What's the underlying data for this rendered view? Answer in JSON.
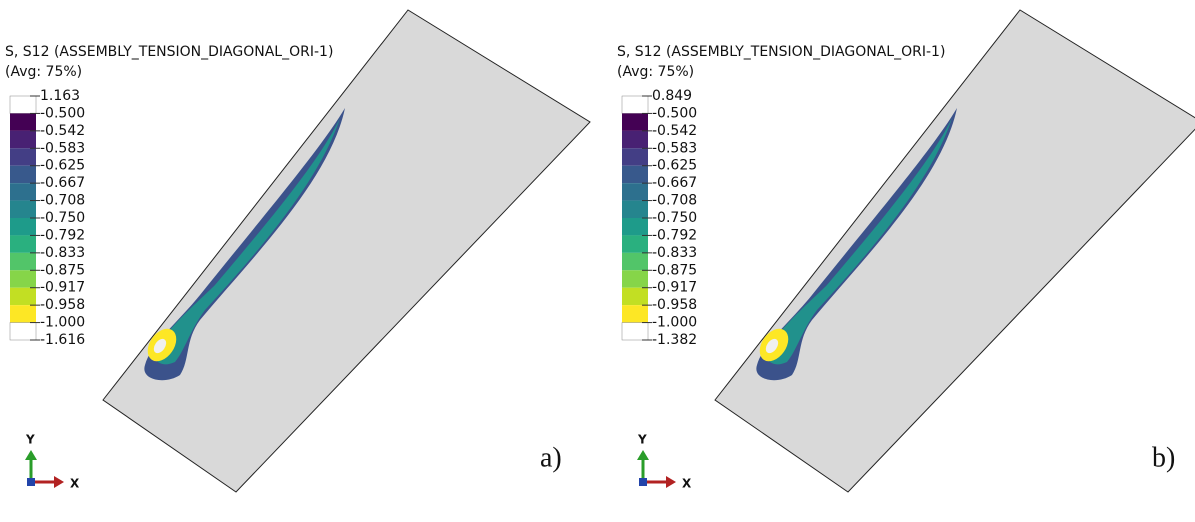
{
  "panels": [
    {
      "title": "S, S12 (ASSEMBLY_TENSION_DIAGONAL_ORI-1)",
      "subtitle": "(Avg: 75%)",
      "legend_labels": [
        "1.163",
        "-0.500",
        "-0.542",
        "-0.583",
        "-0.625",
        "-0.667",
        "-0.708",
        "-0.750",
        "-0.792",
        "-0.833",
        "-0.875",
        "-0.917",
        "-0.958",
        "-1.000",
        "-1.616"
      ],
      "axis_y": "Y",
      "axis_x": "X",
      "label": "a)"
    },
    {
      "title": "S, S12 (ASSEMBLY_TENSION_DIAGONAL_ORI-1)",
      "subtitle": "(Avg: 75%)",
      "legend_labels": [
        "0.849",
        "-0.500",
        "-0.542",
        "-0.583",
        "-0.625",
        "-0.667",
        "-0.708",
        "-0.750",
        "-0.792",
        "-0.833",
        "-0.875",
        "-0.917",
        "-0.958",
        "-1.000",
        "-1.382"
      ],
      "axis_y": "Y",
      "axis_x": "X",
      "label": "b)"
    }
  ]
}
